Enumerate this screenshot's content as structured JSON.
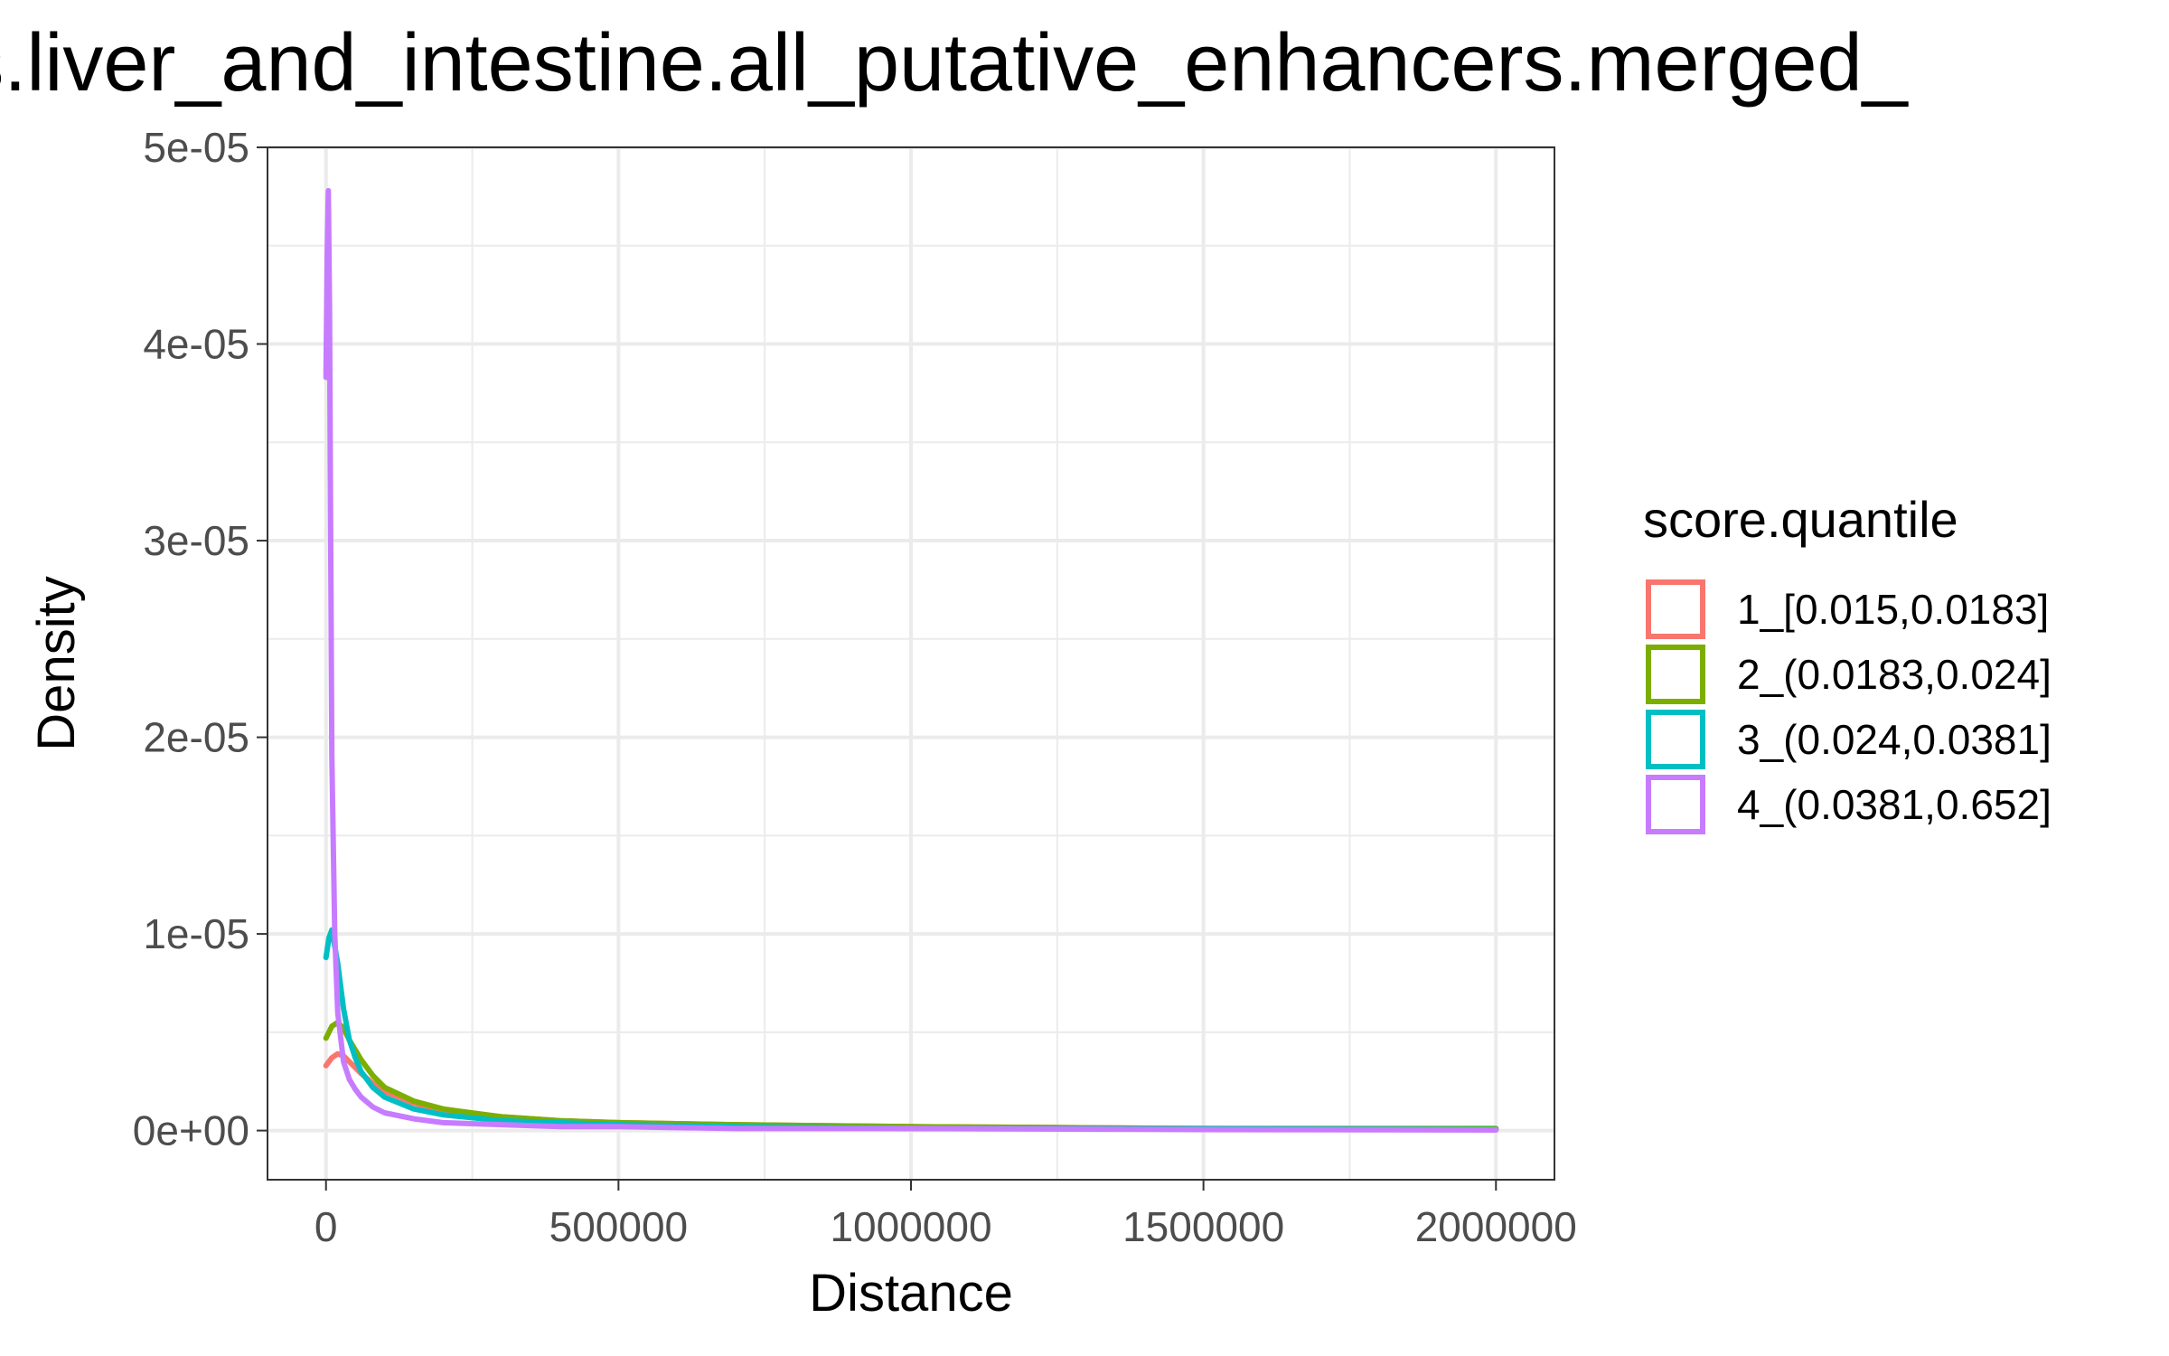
{
  "chart_data": {
    "type": "line",
    "title": "ns.liver_and_intestine.all_putative_enhancers.merged_",
    "xlabel": "Distance",
    "ylabel": "Density",
    "xlim": [
      -100000,
      2100000
    ],
    "ylim": [
      -2.5e-06,
      5e-05
    ],
    "x_ticks": [
      0,
      500000,
      1000000,
      1500000,
      2000000
    ],
    "x_tick_labels": [
      "0",
      "500000",
      "1000000",
      "1500000",
      "2000000"
    ],
    "y_ticks": [
      0,
      1e-05,
      2e-05,
      3e-05,
      4e-05,
      5e-05
    ],
    "y_tick_labels": [
      "0e+00",
      "1e-05",
      "2e-05",
      "3e-05",
      "4e-05",
      "5e-05"
    ],
    "grid": true,
    "legend": {
      "title": "score.quantile",
      "position": "right"
    },
    "series": [
      {
        "name": "1_[0.015,0.0183]",
        "color": "#F8766D",
        "x": [
          0,
          10000,
          20000,
          30000,
          40000,
          60000,
          80000,
          100000,
          150000,
          200000,
          300000,
          400000,
          500000,
          700000,
          1000000,
          1500000,
          2000000
        ],
        "y": [
          3.3e-06,
          3.7e-06,
          3.9e-06,
          3.8e-06,
          3.5e-06,
          2.9e-06,
          2.4e-06,
          2e-06,
          1.4e-06,
          1e-06,
          7e-07,
          5e-07,
          4e-07,
          3e-07,
          2e-07,
          1e-07,
          1e-07
        ]
      },
      {
        "name": "2_(0.0183,0.024]",
        "color": "#7CAE00",
        "x": [
          0,
          10000,
          20000,
          30000,
          40000,
          60000,
          80000,
          100000,
          150000,
          200000,
          300000,
          400000,
          500000,
          700000,
          1000000,
          1500000,
          2000000
        ],
        "y": [
          4.7e-06,
          5.3e-06,
          5.5e-06,
          5.2e-06,
          4.6e-06,
          3.6e-06,
          2.8e-06,
          2.2e-06,
          1.5e-06,
          1.1e-06,
          7e-07,
          5e-07,
          4e-07,
          3e-07,
          2e-07,
          1e-07,
          1e-07
        ]
      },
      {
        "name": "3_(0.024,0.0381]",
        "color": "#00BFC4",
        "x": [
          0,
          5000,
          10000,
          20000,
          30000,
          40000,
          50000,
          60000,
          80000,
          100000,
          150000,
          200000,
          300000,
          400000,
          500000,
          700000,
          1000000,
          1500000,
          2000000
        ],
        "y": [
          8.8e-06,
          9.8e-06,
          1.02e-05,
          8.5e-06,
          6.2e-06,
          4.6e-06,
          3.7e-06,
          3e-06,
          2.2e-06,
          1.7e-06,
          1.1e-06,
          8e-07,
          5e-07,
          4e-07,
          3e-07,
          2e-07,
          1e-07,
          1e-07,
          5e-08
        ]
      },
      {
        "name": "4_(0.0381,0.652]",
        "color": "#C77CFF",
        "x": [
          0,
          2000,
          4000,
          6000,
          8000,
          10000,
          15000,
          20000,
          30000,
          40000,
          50000,
          60000,
          80000,
          100000,
          150000,
          200000,
          300000,
          400000,
          500000,
          700000,
          1000000,
          1500000,
          2000000
        ],
        "y": [
          3.83e-05,
          4.45e-05,
          4.78e-05,
          4.2e-05,
          3e-05,
          1.9e-05,
          1e-05,
          6e-06,
          3.5e-06,
          2.6e-06,
          2.1e-06,
          1.7e-06,
          1.2e-06,
          9e-07,
          6e-07,
          4e-07,
          3e-07,
          2e-07,
          2e-07,
          1e-07,
          1e-07,
          5e-08,
          3e-08
        ]
      }
    ]
  }
}
